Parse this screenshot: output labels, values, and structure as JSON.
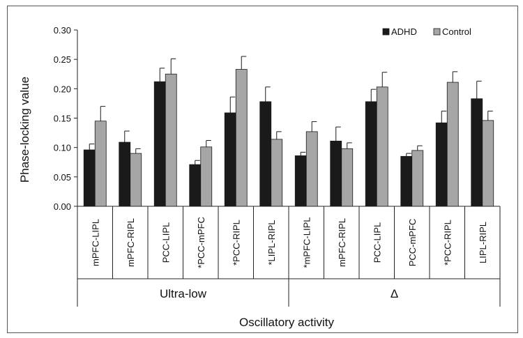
{
  "chart_data": {
    "type": "bar",
    "ylabel": "Phase-locking value",
    "xlabel": "Oscillatory activity",
    "ylim": [
      0,
      0.3
    ],
    "yticks": [
      "0.00",
      "0.05",
      "0.10",
      "0.15",
      "0.20",
      "0.25",
      "0.30"
    ],
    "ytick_values": [
      0,
      0.05,
      0.1,
      0.15,
      0.2,
      0.25,
      0.3
    ],
    "grid": false,
    "legend_position": "top-right",
    "categories": [
      "mPFC-LIPL",
      "mPFC-RIPL",
      "PCC-LIPL",
      "*PCC-mPFC",
      "*PCC-RIPL",
      "*LIPL-RIPL",
      "*mPFC-LIPL",
      "mPFC-RIPL",
      "PCC-LIPL",
      "PCC-mPFC",
      "*PCC-RIPL",
      "LIPL-RIPL"
    ],
    "groups": [
      {
        "label": "Ultra-low",
        "count": 6
      },
      {
        "label": "Δ",
        "count": 6
      }
    ],
    "series": [
      {
        "name": "ADHD",
        "color": "#1a1a1a",
        "values": [
          0.096,
          0.109,
          0.212,
          0.071,
          0.159,
          0.178,
          0.086,
          0.111,
          0.178,
          0.085,
          0.142,
          0.183
        ],
        "errors": [
          0.01,
          0.019,
          0.023,
          0.007,
          0.027,
          0.025,
          0.006,
          0.024,
          0.021,
          0.005,
          0.02,
          0.03
        ]
      },
      {
        "name": "Control",
        "color": "#a6a6a6",
        "values": [
          0.145,
          0.09,
          0.225,
          0.101,
          0.233,
          0.114,
          0.127,
          0.098,
          0.203,
          0.095,
          0.211,
          0.146
        ],
        "errors": [
          0.025,
          0.008,
          0.026,
          0.011,
          0.022,
          0.013,
          0.017,
          0.01,
          0.025,
          0.008,
          0.018,
          0.016
        ]
      }
    ]
  }
}
